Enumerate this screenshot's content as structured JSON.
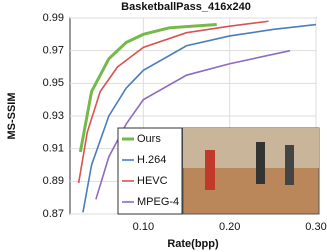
{
  "chart_data": {
    "type": "line",
    "title": "BasketballPass_416x240",
    "xlabel": "Rate(bpp)",
    "ylabel": "MS-SSIM",
    "xlim": [
      0.015,
      0.3
    ],
    "ylim": [
      0.87,
      0.99
    ],
    "xticks": [
      {
        "value": 0.1,
        "label": "0.10"
      },
      {
        "value": 0.2,
        "label": "0.20"
      },
      {
        "value": 0.3,
        "label": "0.30"
      }
    ],
    "yticks": [
      0.87,
      0.89,
      0.91,
      0.93,
      0.95,
      0.97,
      0.99
    ],
    "grid": true,
    "legend": "lower center",
    "series": [
      {
        "name": "Ours",
        "color": "#77b84a",
        "x": [
          0.027,
          0.04,
          0.06,
          0.08,
          0.1,
          0.13,
          0.185
        ],
        "values": [
          0.908,
          0.945,
          0.965,
          0.975,
          0.98,
          0.984,
          0.986
        ]
      },
      {
        "name": "H.264",
        "color": "#4a7ebb",
        "x": [
          0.03,
          0.04,
          0.06,
          0.08,
          0.1,
          0.15,
          0.2,
          0.25,
          0.3
        ],
        "values": [
          0.871,
          0.9,
          0.93,
          0.947,
          0.958,
          0.973,
          0.979,
          0.983,
          0.986
        ]
      },
      {
        "name": "HEVC",
        "color": "#d9534f",
        "x": [
          0.025,
          0.035,
          0.05,
          0.07,
          0.1,
          0.15,
          0.2,
          0.245
        ],
        "values": [
          0.889,
          0.92,
          0.945,
          0.96,
          0.972,
          0.981,
          0.985,
          0.988
        ]
      },
      {
        "name": "MPEG-4",
        "color": "#8e6bbf",
        "x": [
          0.045,
          0.06,
          0.08,
          0.1,
          0.15,
          0.2,
          0.27
        ],
        "values": [
          0.879,
          0.905,
          0.925,
          0.94,
          0.955,
          0.962,
          0.97
        ]
      }
    ]
  }
}
